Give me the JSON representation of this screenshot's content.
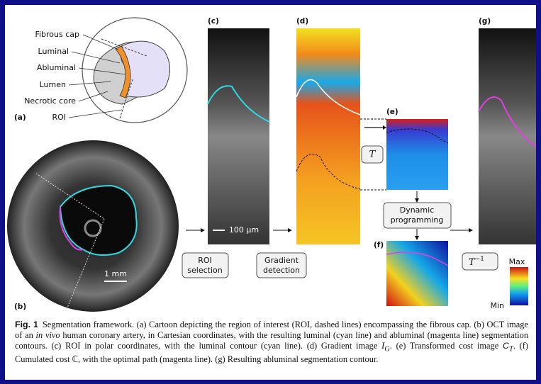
{
  "panels": {
    "a": {
      "label": "(a)",
      "labels": [
        "Fibrous cap",
        "Luminal",
        "Abluminal",
        "Lumen",
        "Necrotic core",
        "ROI"
      ]
    },
    "b": {
      "label": "(b)",
      "scale": "1 mm"
    },
    "c": {
      "label": "(c)",
      "scale": "100 µm"
    },
    "d": {
      "label": "(d)"
    },
    "e": {
      "label": "(e)"
    },
    "f": {
      "label": "(f)"
    },
    "g": {
      "label": "(g)"
    }
  },
  "steps": {
    "roi": [
      "ROI",
      "selection"
    ],
    "gradient": [
      "Gradient",
      "detection"
    ],
    "dp": [
      "Dynamic",
      "programming"
    ],
    "transform": "T",
    "inverse": {
      "base": "T",
      "exponent": "−1"
    }
  },
  "colorbar": {
    "max": "Max",
    "min": "Min"
  },
  "caption": {
    "label": "Fig. 1",
    "parts": [
      "Segmentation framework. (a) Cartoon depicting the region of interest (ROI, dashed lines) encompassing the fibrous cap. (b) OCT image of an ",
      "in vivo",
      " human coronary artery, in Cartesian coordinates, with the resulting luminal (cyan line) and abluminal (magenta line) segmentation contours. (c) ROI in polar coordinates, with the luminal contour (cyan line). (d) Gradient image ",
      "I",
      "G",
      ". (e) Transformed cost image ",
      "C",
      "T",
      ". (f) Cumulated cost ℂ, with the optimal path (magenta line). (g) Resulting abluminal segmentation contour."
    ]
  }
}
